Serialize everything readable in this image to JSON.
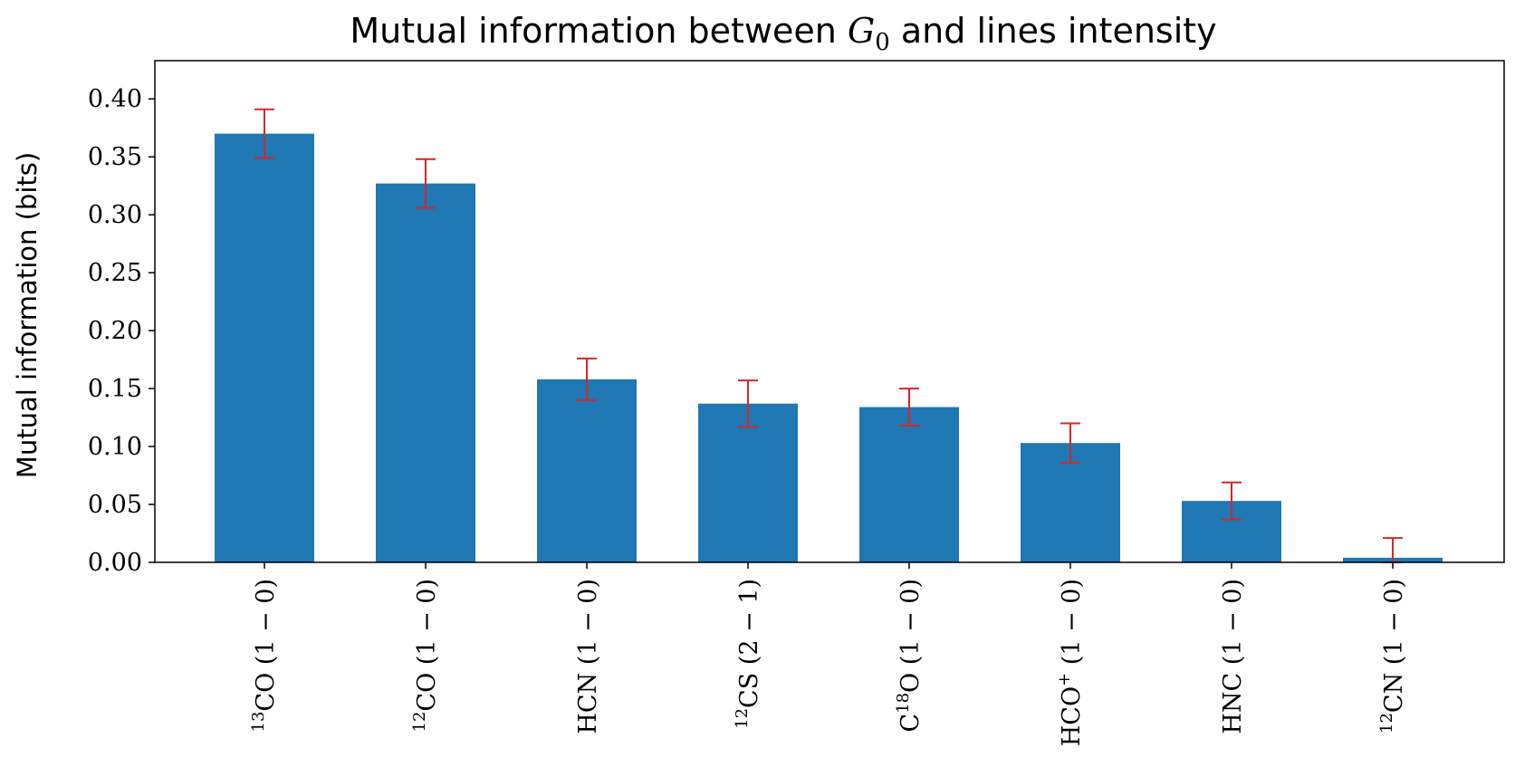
{
  "chart_data": {
    "type": "bar",
    "title": {
      "prefix": "Mutual information between ",
      "symbol": "G",
      "subscript": "0",
      "suffix": " and lines intensity"
    },
    "xlabel": "",
    "ylabel": "Mutual information (bits)",
    "ylim": [
      0,
      0.433
    ],
    "yticks": [
      "0.00",
      "0.05",
      "0.10",
      "0.15",
      "0.20",
      "0.25",
      "0.30",
      "0.35",
      "0.40"
    ],
    "ytick_values": [
      0,
      0.05,
      0.1,
      0.15,
      0.2,
      0.25,
      0.3,
      0.35,
      0.4
    ],
    "categories": [
      {
        "pre": "",
        "sup": "13",
        "main": "CO",
        "sup2": "",
        "tail": " (1 − 0)"
      },
      {
        "pre": "",
        "sup": "12",
        "main": "CO",
        "sup2": "",
        "tail": " (1 − 0)"
      },
      {
        "pre": "",
        "sup": "",
        "main": "HCN",
        "sup2": "",
        "tail": " (1 − 0)"
      },
      {
        "pre": "",
        "sup": "12",
        "main": "CS",
        "sup2": "",
        "tail": " (2 − 1)"
      },
      {
        "pre": "C",
        "sup": "18",
        "main": "O",
        "sup2": "",
        "tail": " (1 − 0)"
      },
      {
        "pre": "",
        "sup": "",
        "main": "HCO",
        "sup2": "+",
        "tail": " (1 − 0)"
      },
      {
        "pre": "",
        "sup": "",
        "main": "HNC",
        "sup2": "",
        "tail": " (1 − 0)"
      },
      {
        "pre": "",
        "sup": "12",
        "main": "CN",
        "sup2": "",
        "tail": " (1 − 0)"
      }
    ],
    "values": [
      0.37,
      0.327,
      0.158,
      0.137,
      0.134,
      0.103,
      0.053,
      0.004
    ],
    "errors": [
      0.021,
      0.021,
      0.018,
      0.02,
      0.016,
      0.017,
      0.016,
      0.017
    ],
    "grid": false,
    "legend": "none",
    "colors": {
      "bar": "#1f77b4",
      "error": "#d62728",
      "axis": "#000000"
    }
  }
}
